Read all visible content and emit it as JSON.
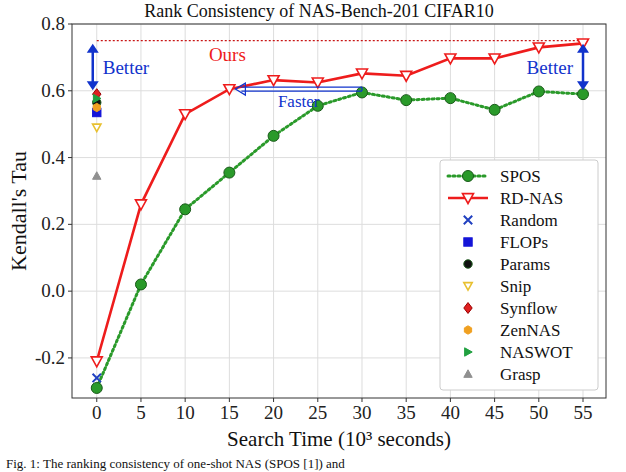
{
  "chart_data": {
    "type": "line",
    "title": "Rank Consistency of NAS-Bench-201 CIFAR10",
    "x_label": "Search Time (10³ seconds)",
    "y_label": "Kendall's Tau",
    "caption": "Fig. 1: The ranking consistency of one-shot NAS (SPOS [1]) and",
    "xlim": [
      -2.8,
      57.6
    ],
    "ylim": [
      -0.32,
      0.8
    ],
    "xticks": [
      0,
      5,
      10,
      15,
      20,
      25,
      30,
      35,
      40,
      45,
      50,
      55
    ],
    "yticks": [
      -0.2,
      0,
      0.2,
      0.4,
      0.6,
      0.8
    ],
    "grid": true,
    "legend": "lower right",
    "reference_line": 0.75,
    "annotations": [
      "Better",
      "Ours",
      "Faster",
      "Better"
    ],
    "series": [
      {
        "name": "SPOS",
        "type": "line",
        "color": "#2a9a2a",
        "marker": "circle",
        "line_style": "dotted",
        "x": [
          0,
          5,
          10,
          15,
          20,
          25,
          30,
          35,
          40,
          45,
          50,
          55
        ],
        "values": [
          -0.29,
          0.02,
          0.245,
          0.355,
          0.465,
          0.555,
          0.595,
          0.572,
          0.578,
          0.543,
          0.598,
          0.59
        ]
      },
      {
        "name": "RD-NAS",
        "type": "line",
        "color": "#ee1c1c",
        "marker": "triangle_down",
        "line_style": "solid",
        "x": [
          0,
          5,
          10,
          15,
          20,
          25,
          30,
          35,
          40,
          45,
          50,
          55
        ],
        "values": [
          -0.21,
          0.26,
          0.53,
          0.605,
          0.632,
          0.625,
          0.652,
          0.645,
          0.697,
          0.697,
          0.73,
          0.742
        ]
      },
      {
        "name": "Random",
        "type": "scatter",
        "color": "#2040c0",
        "marker": "x",
        "x": [
          0
        ],
        "values": [
          -0.26
        ]
      },
      {
        "name": "FLOPs",
        "type": "scatter",
        "color": "#1414d8",
        "marker": "square",
        "x": [
          0
        ],
        "values": [
          0.535
        ]
      },
      {
        "name": "Params",
        "type": "scatter",
        "color": "#111111",
        "marker": "circle",
        "x": [
          0
        ],
        "values": [
          0.565
        ]
      },
      {
        "name": "Snip",
        "type": "scatter",
        "color": "#e8c030",
        "marker": "triangle_down",
        "x": [
          0
        ],
        "values": [
          0.49
        ]
      },
      {
        "name": "Synflow",
        "type": "scatter",
        "color": "#e02020",
        "marker": "diamond",
        "x": [
          0
        ],
        "values": [
          0.59
        ]
      },
      {
        "name": "ZenNAS",
        "type": "scatter",
        "color": "#f0a020",
        "marker": "hexagon",
        "x": [
          0
        ],
        "values": [
          0.55
        ]
      },
      {
        "name": "NASWOT",
        "type": "scatter",
        "color": "#20a040",
        "marker": "triangle_right",
        "x": [
          0
        ],
        "values": [
          0.577
        ]
      },
      {
        "name": "Grasp",
        "type": "scatter",
        "color": "#909090",
        "marker": "triangle_up",
        "x": [
          0
        ],
        "values": [
          0.345
        ]
      }
    ]
  }
}
